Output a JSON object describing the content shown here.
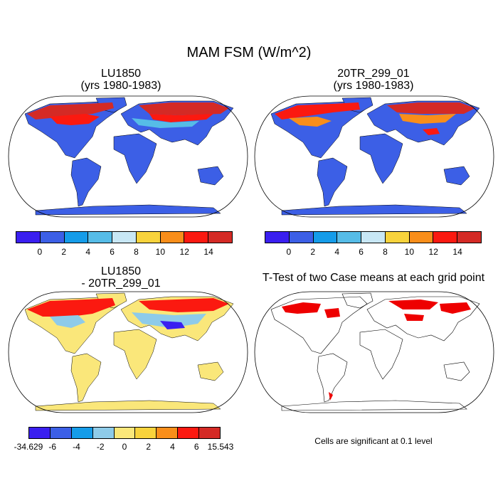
{
  "figure_title": "MAM FSM (W/m^2)",
  "panels": [
    {
      "title": "LU1850",
      "subtitle": "(yrs 1980-1983)"
    },
    {
      "title": "20TR_299_01",
      "subtitle": "(yrs 1980-1983)"
    },
    {
      "title": "LU1850",
      "subtitle": "- 20TR_299_01"
    },
    {
      "title": "T-Test of two Case means at each grid point",
      "subtitle": ""
    }
  ],
  "colorbar_abs": {
    "colors": [
      "#3a1ff0",
      "#3c5fe6",
      "#159ce9",
      "#56bce7",
      "#c8e7f5",
      "#f8d33c",
      "#f98e1a",
      "#fb1910",
      "#d42a25"
    ],
    "labels": [
      "0",
      "2",
      "4",
      "6",
      "8",
      "10",
      "12",
      "14"
    ]
  },
  "colorbar_diff": {
    "colors": [
      "#3a1ff0",
      "#3c5fe6",
      "#159ce9",
      "#8ecbe9",
      "#fae77a",
      "#f8d33c",
      "#f98e1a",
      "#fb1910",
      "#d42a25"
    ],
    "labels": [
      "-34.629",
      "-6",
      "-4",
      "-2",
      "0",
      "2",
      "4",
      "6",
      "15.543"
    ]
  },
  "significance_note": "Cells are significant at 0.1 level",
  "map_colors": {
    "ocean": "#ffffff",
    "land_abs": "#3c5fe6",
    "land_diff": "#fae77a",
    "signif": "#ee0000",
    "snow_high": "#d42a25",
    "snow_mid": "#fb1910",
    "snow_low": "#f98e1a",
    "snow_edge": "#56bce7"
  }
}
